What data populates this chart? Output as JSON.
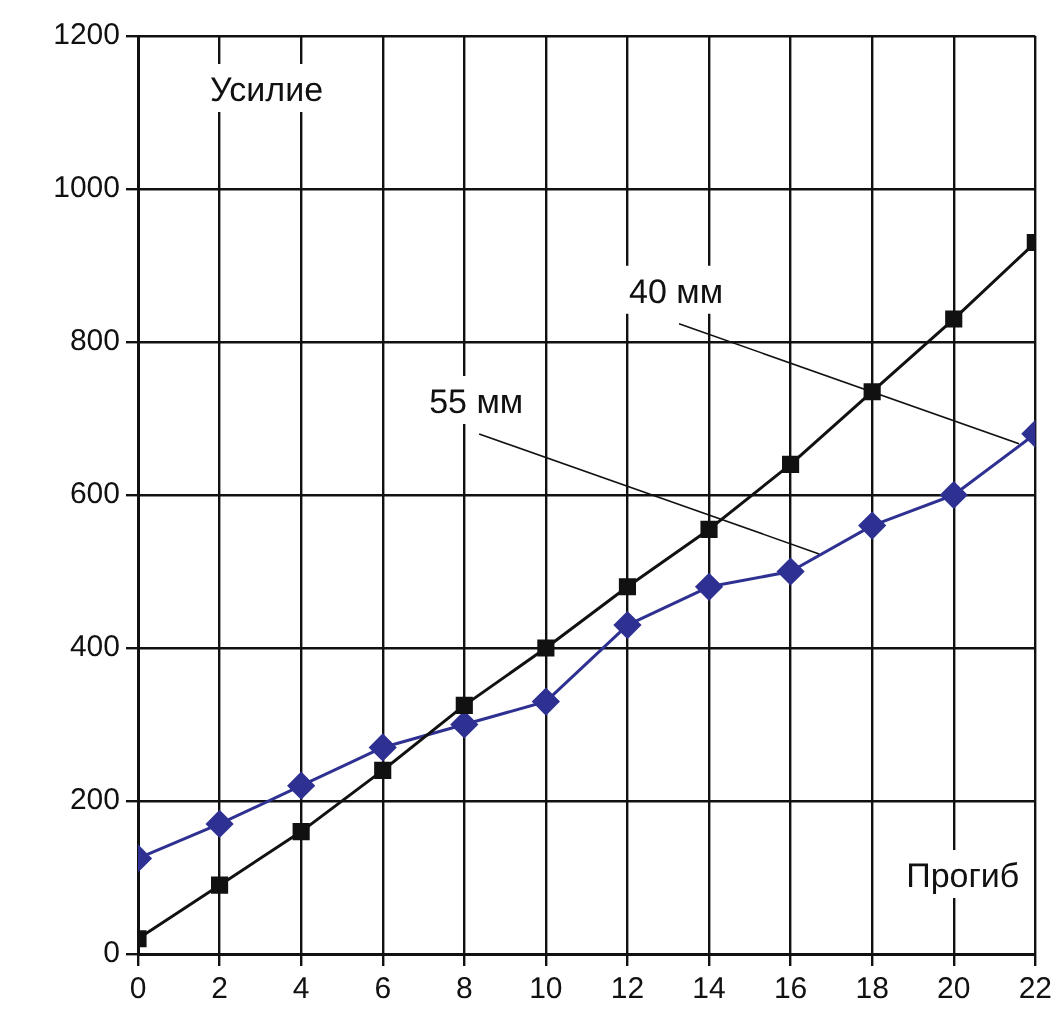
{
  "chart_data": {
    "type": "line",
    "xlabel": "Прогиб",
    "ylabel": "Усилие",
    "x": [
      0,
      2,
      4,
      6,
      8,
      10,
      12,
      14,
      16,
      18,
      20,
      22
    ],
    "series": [
      {
        "color": "#111111",
        "marker": "square",
        "values": [
          20,
          90,
          160,
          240,
          325,
          400,
          480,
          555,
          640,
          735,
          830,
          930
        ]
      },
      {
        "color": "#2e3192",
        "marker": "diamond",
        "values": [
          125,
          170,
          220,
          270,
          300,
          330,
          430,
          480,
          500,
          560,
          600,
          680
        ]
      }
    ],
    "annotations": [
      {
        "text": "40 мм",
        "x": 21.6,
        "y": 667
      },
      {
        "text": "55 мм",
        "x": 16.7,
        "y": 523
      }
    ],
    "xlim": [
      0,
      22
    ],
    "xticks": [
      0,
      2,
      4,
      6,
      8,
      10,
      12,
      14,
      16,
      18,
      20,
      22
    ],
    "ylim": [
      0,
      1200
    ],
    "yticks": [
      0,
      200,
      400,
      600,
      800,
      1000,
      1200
    ],
    "grid": true,
    "line_style": "solid"
  }
}
